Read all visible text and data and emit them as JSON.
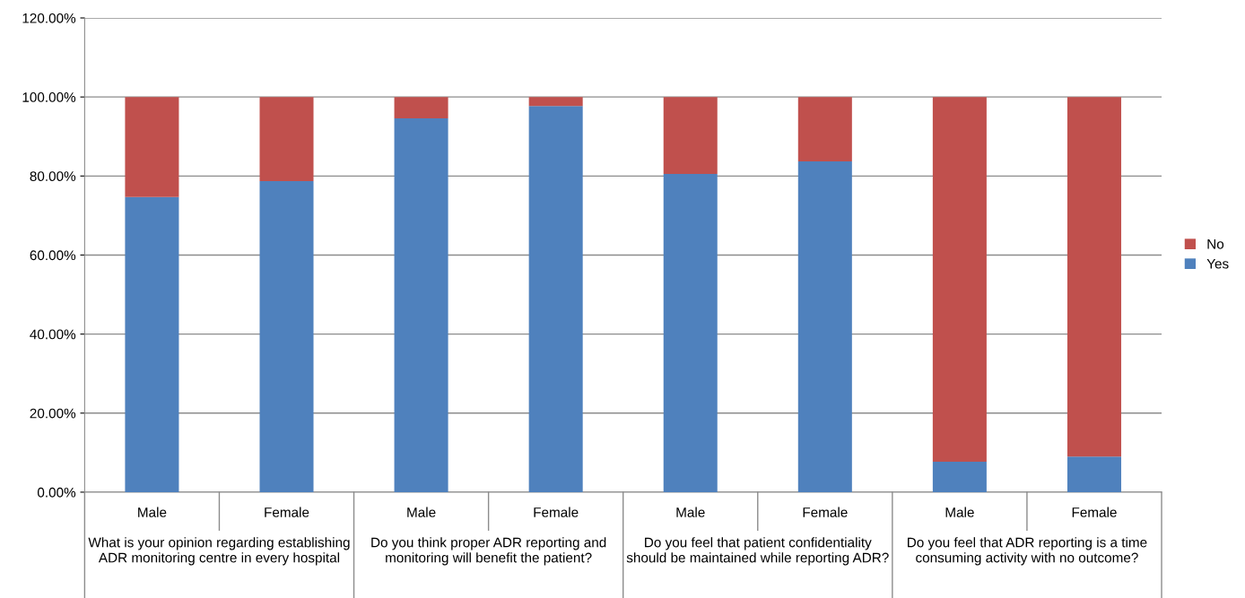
{
  "chart_data": {
    "type": "bar",
    "stacked": true,
    "categories": [
      "Male",
      "Female",
      "Male",
      "Female",
      "Male",
      "Female",
      "Male",
      "Female"
    ],
    "annotations": [
      "What is your opinion regarding establishing ADR monitoring centre in every hospital",
      "Do you think proper ADR reporting and monitoring will benefit the patient?",
      "Do you feel that patient confidentiality should be maintained while reporting ADR?",
      "Do you feel that ADR reporting is a time consuming activity with no outcome?"
    ],
    "series": [
      {
        "name": "Yes",
        "color": "#4f81bd",
        "values": [
          74.7,
          78.7,
          94.6,
          97.7,
          80.5,
          83.7,
          7.7,
          9.0
        ]
      },
      {
        "name": "No",
        "color": "#c0504d",
        "values": [
          25.3,
          21.3,
          5.4,
          2.3,
          19.5,
          16.3,
          92.3,
          91.0
        ]
      }
    ],
    "ylim": [
      0,
      120
    ],
    "yticks": [
      {
        "value": 0,
        "label": "0.00%"
      },
      {
        "value": 20,
        "label": "20.00%"
      },
      {
        "value": 40,
        "label": "40.00%"
      },
      {
        "value": 60,
        "label": "60.00%"
      },
      {
        "value": 80,
        "label": "80.00%"
      },
      {
        "value": 100,
        "label": "100.00%"
      },
      {
        "value": 120,
        "label": "120.00%"
      }
    ],
    "grid": "y",
    "legend": "right"
  }
}
